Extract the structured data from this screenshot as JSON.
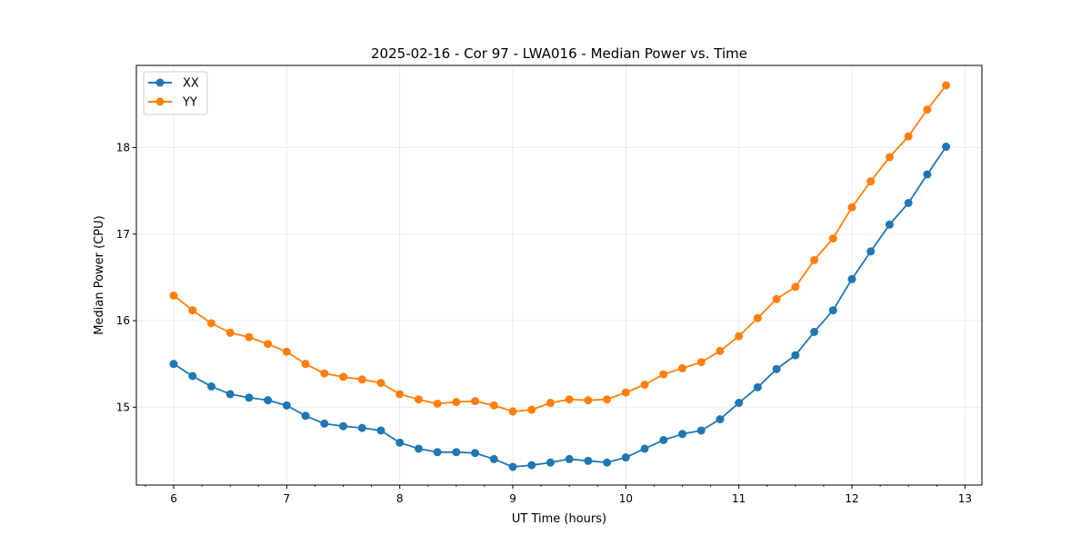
{
  "chart_data": {
    "type": "line",
    "title": "2025-02-16 - Cor 97 - LWA016 - Median Power vs. Time",
    "xlabel": "UT Time (hours)",
    "ylabel": "Median Power (CPU)",
    "xlim": [
      5.67,
      13.15
    ],
    "ylim": [
      14.1,
      18.95
    ],
    "xticks": [
      6,
      7,
      8,
      9,
      10,
      11,
      12,
      13
    ],
    "yticks": [
      15,
      16,
      17,
      18
    ],
    "grid": true,
    "legend_position": "top-left",
    "x": [
      6.0,
      6.1667,
      6.3333,
      6.5,
      6.6667,
      6.8333,
      7.0,
      7.1667,
      7.3333,
      7.5,
      7.6667,
      7.8333,
      8.0,
      8.1667,
      8.3333,
      8.5,
      8.6667,
      8.8333,
      9.0,
      9.1667,
      9.3333,
      9.5,
      9.6667,
      9.8333,
      10.0,
      10.1667,
      10.3333,
      10.5,
      10.6667,
      10.8333,
      11.0,
      11.1667,
      11.3333,
      11.5,
      11.6667,
      11.8333,
      12.0,
      12.1667,
      12.3333,
      12.5,
      12.6667,
      12.8333
    ],
    "series": [
      {
        "name": "XX",
        "color": "#1f77b4",
        "values": [
          15.5,
          15.36,
          15.24,
          15.15,
          15.11,
          15.08,
          15.02,
          14.9,
          14.81,
          14.78,
          14.76,
          14.73,
          14.59,
          14.52,
          14.48,
          14.48,
          14.47,
          14.4,
          14.31,
          14.33,
          14.36,
          14.4,
          14.38,
          14.36,
          14.42,
          14.52,
          14.62,
          14.69,
          14.73,
          14.86,
          15.05,
          15.23,
          15.44,
          15.6,
          15.87,
          16.12,
          16.48,
          16.8,
          17.11,
          17.36,
          17.69,
          18.01
        ]
      },
      {
        "name": "YY",
        "color": "#ff7f0e",
        "values": [
          16.29,
          16.12,
          15.97,
          15.86,
          15.81,
          15.73,
          15.64,
          15.5,
          15.39,
          15.35,
          15.32,
          15.28,
          15.15,
          15.09,
          15.04,
          15.06,
          15.07,
          15.02,
          14.95,
          14.97,
          15.05,
          15.09,
          15.08,
          15.09,
          15.17,
          15.26,
          15.38,
          15.45,
          15.52,
          15.65,
          15.82,
          16.03,
          16.25,
          16.39,
          16.7,
          16.95,
          17.31,
          17.61,
          17.89,
          18.13,
          18.44,
          18.72
        ]
      }
    ]
  }
}
